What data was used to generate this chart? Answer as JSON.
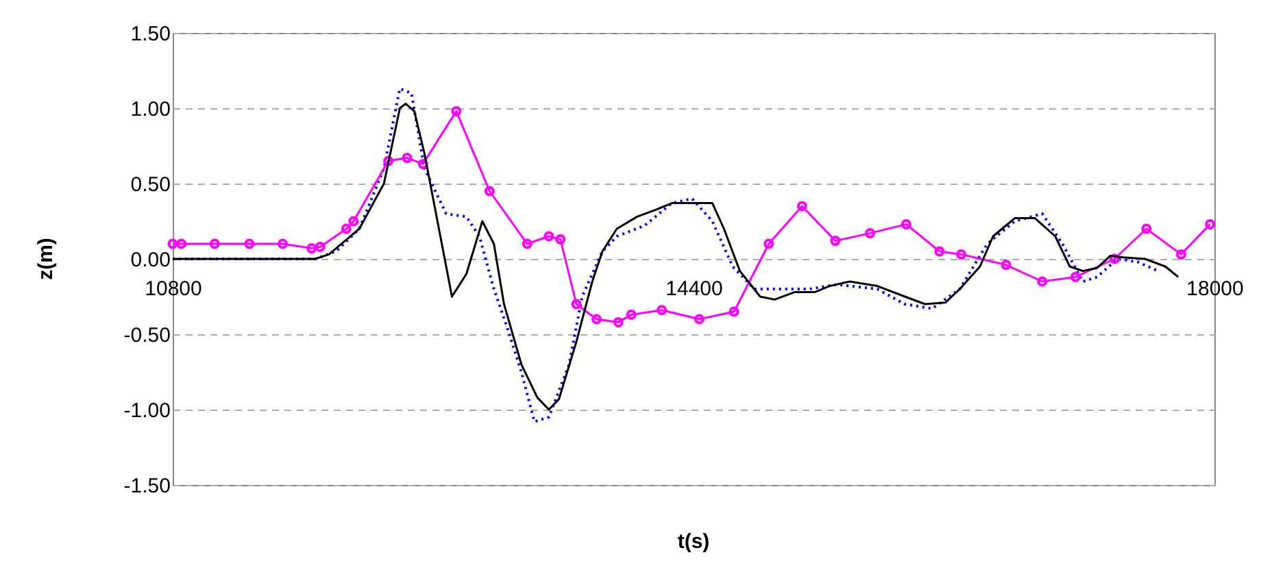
{
  "chart_data": {
    "type": "line",
    "xlabel": "t(s)",
    "ylabel": "z(m)",
    "xlim": [
      10800,
      18000
    ],
    "xticks": [
      10800,
      14400,
      18000
    ],
    "ylim": [
      -1.5,
      1.5
    ],
    "yticks": [
      {
        "value": -1.5,
        "label": "-1.50"
      },
      {
        "value": -1,
        "label": "-1.00"
      },
      {
        "value": -0.5,
        "label": "-0.50"
      },
      {
        "value": 0,
        "label": "0.00"
      },
      {
        "value": 0.5,
        "label": "0.50"
      },
      {
        "value": 1,
        "label": "1.00"
      },
      {
        "value": 1.5,
        "label": "1.50"
      }
    ],
    "grid": "y",
    "series": [
      {
        "color": "#0000ff",
        "line_style": "dotted",
        "marker": "none",
        "x": [
          10800,
          11785,
          11930,
          12090,
          12260,
          12370,
          12450,
          12540,
          12690,
          12830,
          12920,
          13020,
          13110,
          13210,
          13300,
          13400,
          13540,
          13630,
          13770,
          13870,
          14060,
          14250,
          14390,
          14530,
          14670,
          14820,
          15010,
          15200,
          15390,
          15670,
          15860,
          16050,
          16240,
          16430,
          16620,
          16810,
          16950,
          17090,
          17190,
          17330,
          17470,
          17610
        ],
        "values": [
          0,
          0,
          0.05,
          0.2,
          0.6,
          1.13,
          1.1,
          0.6,
          0.3,
          0.28,
          0.15,
          -0.2,
          -0.45,
          -0.75,
          -1.08,
          -1.05,
          -0.7,
          -0.25,
          0.05,
          0.15,
          0.22,
          0.37,
          0.4,
          0.25,
          -0.05,
          -0.2,
          -0.2,
          -0.2,
          -0.17,
          -0.2,
          -0.3,
          -0.33,
          -0.2,
          0.1,
          0.25,
          0.3,
          0.1,
          -0.15,
          -0.12,
          0,
          -0.02,
          -0.08
        ]
      },
      {
        "color": "#ff00ff",
        "line_style": "solid",
        "marker": "circle",
        "x": [
          10800,
          10860,
          11090,
          11330,
          11560,
          11760,
          11820,
          12000,
          12050,
          12290,
          12420,
          12530,
          12760,
          12990,
          13250,
          13400,
          13480,
          13590,
          13730,
          13880,
          13970,
          14180,
          14440,
          14680,
          14920,
          15150,
          15380,
          15620,
          15870,
          16100,
          16250,
          16560,
          16810,
          17040,
          17310,
          17530,
          17770,
          17970
        ],
        "values": [
          0.1,
          0.1,
          0.1,
          0.1,
          0.1,
          0.07,
          0.08,
          0.2,
          0.25,
          0.65,
          0.67,
          0.63,
          0.98,
          0.45,
          0.1,
          0.15,
          0.13,
          -0.3,
          -0.4,
          -0.42,
          -0.37,
          -0.34,
          -0.4,
          -0.35,
          0.1,
          0.35,
          0.12,
          0.17,
          0.23,
          0.05,
          0.03,
          -0.04,
          -0.15,
          -0.12,
          0,
          0.2,
          0.03,
          0.23
        ]
      },
      {
        "color": "#000000",
        "line_style": "solid",
        "marker": "none",
        "x": [
          10800,
          11785,
          11880,
          12090,
          12260,
          12370,
          12410,
          12470,
          12540,
          12640,
          12730,
          12830,
          12940,
          13020,
          13090,
          13210,
          13320,
          13400,
          13470,
          13590,
          13700,
          13770,
          13870,
          14010,
          14150,
          14250,
          14530,
          14610,
          14720,
          14860,
          14960,
          15100,
          15240,
          15340,
          15480,
          15670,
          15860,
          16000,
          16140,
          16240,
          16380,
          16470,
          16620,
          16760,
          16900,
          17000,
          17090,
          17190,
          17280,
          17370,
          17520,
          17660,
          17750
        ],
        "values": [
          0,
          0,
          0.03,
          0.2,
          0.5,
          1.0,
          1.03,
          0.98,
          0.7,
          0.2,
          -0.25,
          -0.1,
          0.25,
          0.1,
          -0.3,
          -0.7,
          -0.92,
          -1.0,
          -0.93,
          -0.55,
          -0.15,
          0.05,
          0.2,
          0.28,
          0.33,
          0.37,
          0.37,
          0.2,
          -0.08,
          -0.25,
          -0.27,
          -0.22,
          -0.22,
          -0.18,
          -0.15,
          -0.18,
          -0.25,
          -0.3,
          -0.29,
          -0.2,
          -0.05,
          0.15,
          0.27,
          0.27,
          0.15,
          -0.05,
          -0.08,
          -0.06,
          0.02,
          0.01,
          0,
          -0.05,
          -0.12
        ]
      }
    ]
  }
}
